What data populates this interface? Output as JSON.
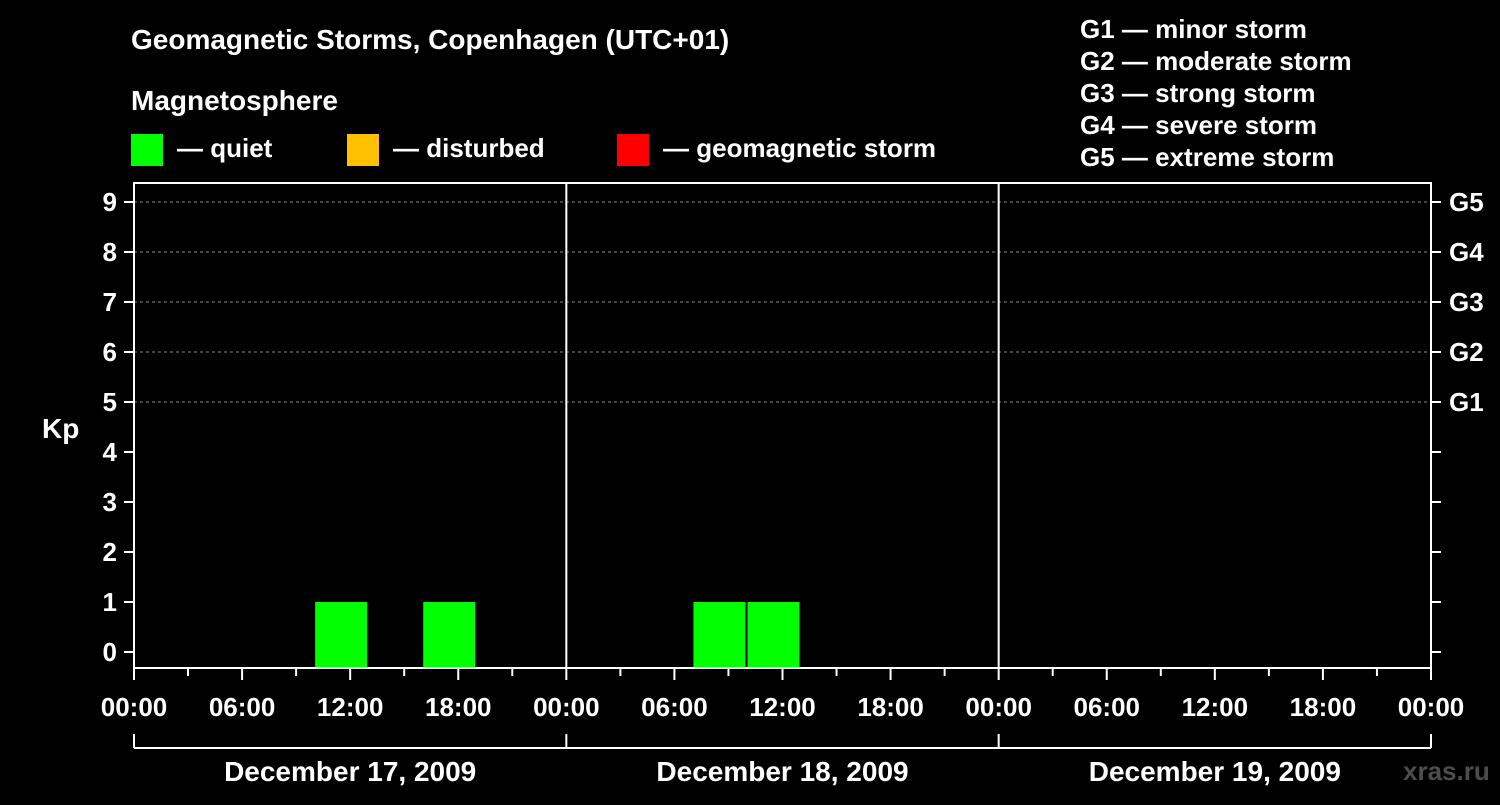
{
  "title": "Geomagnetic Storms, Copenhagen (UTC+01)",
  "legend": {
    "heading": "Magnetosphere",
    "items": [
      {
        "label": "— quiet",
        "color": "#00ff00"
      },
      {
        "label": "— disturbed",
        "color": "#ffc000"
      },
      {
        "label": "— geomagnetic storm",
        "color": "#ff0000"
      }
    ]
  },
  "storm_scale": [
    "G1 — minor storm",
    "G2 — moderate storm",
    "G3 — strong storm",
    "G4 — severe storm",
    "G5 — extreme storm"
  ],
  "credit": "xras.ru",
  "chart_data": {
    "type": "bar",
    "title": "Geomagnetic Storms, Copenhagen (UTC+01)",
    "ylabel": "Kp",
    "ylim": [
      0,
      9
    ],
    "yticks": [
      "0",
      "1",
      "2",
      "3",
      "4",
      "5",
      "6",
      "7",
      "8",
      "9"
    ],
    "right_axis": [
      {
        "kp": 5,
        "label": "G1"
      },
      {
        "kp": 6,
        "label": "G2"
      },
      {
        "kp": 7,
        "label": "G3"
      },
      {
        "kp": 8,
        "label": "G4"
      },
      {
        "kp": 9,
        "label": "G5"
      }
    ],
    "x_range_hours": [
      0,
      72
    ],
    "xticks": [
      {
        "h": 0,
        "label": "00:00"
      },
      {
        "h": 6,
        "label": "06:00"
      },
      {
        "h": 12,
        "label": "12:00"
      },
      {
        "h": 18,
        "label": "18:00"
      },
      {
        "h": 24,
        "label": "00:00"
      },
      {
        "h": 30,
        "label": "06:00"
      },
      {
        "h": 36,
        "label": "12:00"
      },
      {
        "h": 42,
        "label": "18:00"
      },
      {
        "h": 48,
        "label": "00:00"
      },
      {
        "h": 54,
        "label": "06:00"
      },
      {
        "h": 60,
        "label": "12:00"
      },
      {
        "h": 66,
        "label": "18:00"
      },
      {
        "h": 72,
        "label": "00:00"
      }
    ],
    "days": [
      "December 17, 2009",
      "December 18, 2009",
      "December 19, 2009"
    ],
    "bars": [
      {
        "start_h": 10,
        "end_h": 13,
        "kp": 1,
        "state": "quiet"
      },
      {
        "start_h": 16,
        "end_h": 19,
        "kp": 1,
        "state": "quiet"
      },
      {
        "start_h": 31,
        "end_h": 34,
        "kp": 1,
        "state": "quiet"
      },
      {
        "start_h": 34,
        "end_h": 37,
        "kp": 1,
        "state": "quiet"
      }
    ],
    "grid": "dashed horizontal at G levels"
  }
}
